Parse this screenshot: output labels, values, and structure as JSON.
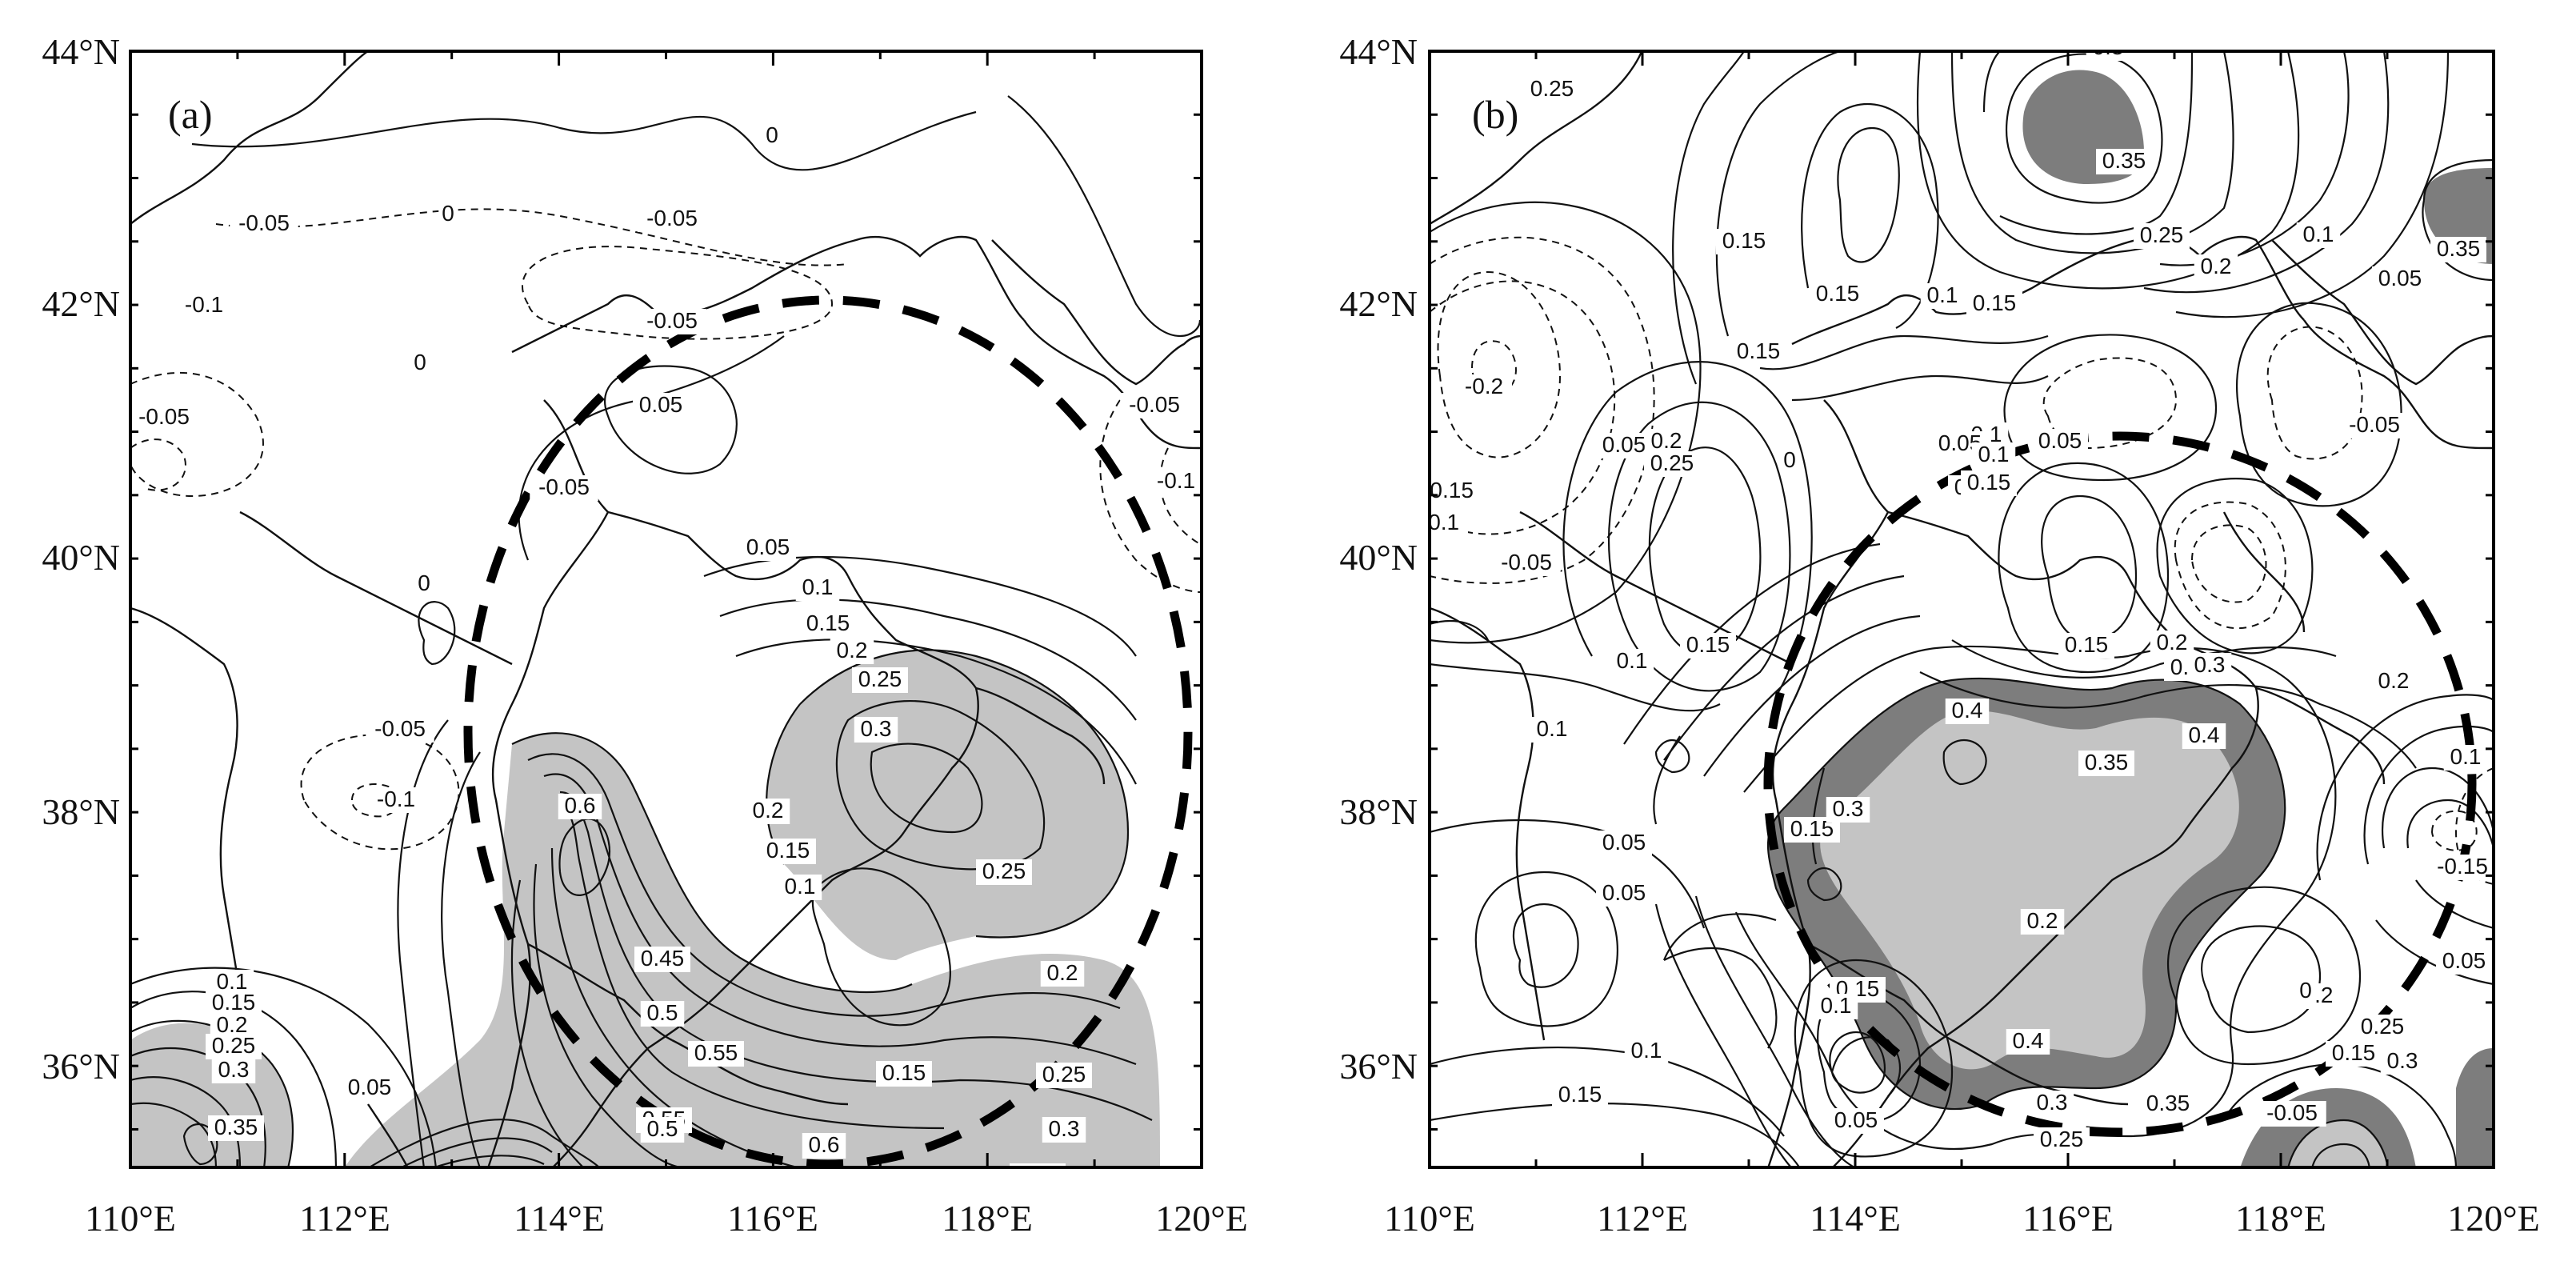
{
  "panels": [
    {
      "id": "a",
      "label": "(a)",
      "contour_labels": [
        "0",
        "0",
        "-0.05",
        "-0.05",
        "-0.05",
        "-0.1",
        "-0.05",
        "0",
        "0.05",
        "-0.05",
        "0",
        "0.05",
        "0.1",
        "0.15",
        "0.2",
        "0.25",
        "0.3",
        "0.6",
        "0.2",
        "0.15",
        "0.1",
        "0.25",
        "-0.05",
        "-0.1",
        "0.45",
        "0.5",
        "0.55",
        "0.55",
        "0.5",
        "0.45",
        "0.6",
        "0.15",
        "0.2",
        "0.25",
        "0.3",
        "0.35",
        "0.1",
        "0.15",
        "0.2",
        "0.25",
        "0.3",
        "0.35",
        "0.05",
        "-0.05",
        "-0.1"
      ]
    },
    {
      "id": "b",
      "label": "(b)",
      "contour_labels": [
        "0.25",
        "0.35",
        "0.3",
        "0.35",
        "0.15",
        "0.15",
        "0.15",
        "0.1",
        "0.15",
        "0.25",
        "0.2",
        "0.1",
        "0.05",
        "-0.2",
        "-0.15",
        "-0.1",
        "-0.05",
        "0.05",
        "0.1",
        "0.2",
        "0.25",
        "0.2",
        "0.15",
        "0.1",
        "0",
        "0.05",
        "0.05",
        "-0.05",
        "0.05",
        "0.1",
        "0.15",
        "0.15",
        "0.2",
        "0.25",
        "0.3",
        "0.4",
        "0.35",
        "0.4",
        "0.1",
        "0.05",
        "0.05",
        "0.15",
        "0.3",
        "0.15",
        "0.1",
        "0.1",
        "0.15",
        "0.05",
        "0.4",
        "0.3",
        "0.35",
        "0.25",
        "0.15",
        "0.2",
        "0.25",
        "0.3",
        "0.2",
        "0.1",
        "-0.15",
        "0.05",
        "0",
        "-0.05"
      ]
    }
  ],
  "axes": {
    "lat_ticks": [
      "44°N",
      "42°N",
      "40°N",
      "38°N",
      "36°N"
    ],
    "lon_ticks": [
      "110°E",
      "112°E",
      "114°E",
      "116°E",
      "118°E",
      "120°E"
    ]
  },
  "colors": {
    "shade_light": "#c4c4c4",
    "shade_dark": "#7d7d7d",
    "line": "#111111"
  }
}
